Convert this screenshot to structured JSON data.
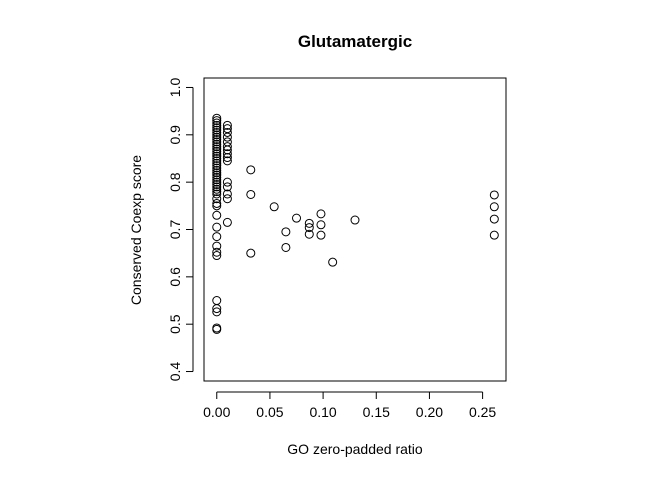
{
  "chart_data": {
    "type": "scatter",
    "title": "Glutamatergic",
    "xlabel": "GO zero-padded ratio",
    "ylabel": "Conserved Coexp score",
    "xlim": [
      -0.012,
      0.272
    ],
    "ylim": [
      0.38,
      1.02
    ],
    "xticks": [
      0.0,
      0.05,
      0.1,
      0.15,
      0.2,
      0.25
    ],
    "xtick_labels": [
      "0.00",
      "0.05",
      "0.10",
      "0.15",
      "0.20",
      "0.25"
    ],
    "yticks": [
      0.4,
      0.5,
      0.6,
      0.7,
      0.8,
      0.9,
      1.0
    ],
    "ytick_labels": [
      "0.4",
      "0.5",
      "0.6",
      "0.7",
      "0.8",
      "0.9",
      "1.0"
    ],
    "grid": false,
    "marker": "open-circle",
    "points": [
      {
        "x": 0.0,
        "y": 0.935
      },
      {
        "x": 0.0,
        "y": 0.93
      },
      {
        "x": 0.0,
        "y": 0.925
      },
      {
        "x": 0.0,
        "y": 0.92
      },
      {
        "x": 0.0,
        "y": 0.915
      },
      {
        "x": 0.0,
        "y": 0.91
      },
      {
        "x": 0.0,
        "y": 0.905
      },
      {
        "x": 0.0,
        "y": 0.9
      },
      {
        "x": 0.0,
        "y": 0.895
      },
      {
        "x": 0.0,
        "y": 0.89
      },
      {
        "x": 0.0,
        "y": 0.885
      },
      {
        "x": 0.0,
        "y": 0.88
      },
      {
        "x": 0.0,
        "y": 0.875
      },
      {
        "x": 0.0,
        "y": 0.87
      },
      {
        "x": 0.0,
        "y": 0.865
      },
      {
        "x": 0.0,
        "y": 0.86
      },
      {
        "x": 0.0,
        "y": 0.855
      },
      {
        "x": 0.0,
        "y": 0.85
      },
      {
        "x": 0.0,
        "y": 0.845
      },
      {
        "x": 0.0,
        "y": 0.84
      },
      {
        "x": 0.0,
        "y": 0.835
      },
      {
        "x": 0.0,
        "y": 0.83
      },
      {
        "x": 0.0,
        "y": 0.825
      },
      {
        "x": 0.0,
        "y": 0.82
      },
      {
        "x": 0.0,
        "y": 0.815
      },
      {
        "x": 0.0,
        "y": 0.81
      },
      {
        "x": 0.0,
        "y": 0.805
      },
      {
        "x": 0.0,
        "y": 0.8
      },
      {
        "x": 0.0,
        "y": 0.795
      },
      {
        "x": 0.0,
        "y": 0.79
      },
      {
        "x": 0.0,
        "y": 0.785
      },
      {
        "x": 0.0,
        "y": 0.78
      },
      {
        "x": 0.0,
        "y": 0.775
      },
      {
        "x": 0.0,
        "y": 0.765
      },
      {
        "x": 0.0,
        "y": 0.755
      },
      {
        "x": 0.0,
        "y": 0.75
      },
      {
        "x": 0.0,
        "y": 0.73
      },
      {
        "x": 0.0,
        "y": 0.705
      },
      {
        "x": 0.0,
        "y": 0.685
      },
      {
        "x": 0.0,
        "y": 0.665
      },
      {
        "x": 0.0,
        "y": 0.652
      },
      {
        "x": 0.0,
        "y": 0.645
      },
      {
        "x": 0.0,
        "y": 0.55
      },
      {
        "x": 0.0,
        "y": 0.533
      },
      {
        "x": 0.0,
        "y": 0.526
      },
      {
        "x": 0.0,
        "y": 0.492
      },
      {
        "x": 0.0,
        "y": 0.489
      },
      {
        "x": 0.01,
        "y": 0.92
      },
      {
        "x": 0.01,
        "y": 0.913
      },
      {
        "x": 0.01,
        "y": 0.905
      },
      {
        "x": 0.01,
        "y": 0.895
      },
      {
        "x": 0.01,
        "y": 0.885
      },
      {
        "x": 0.01,
        "y": 0.875
      },
      {
        "x": 0.01,
        "y": 0.868
      },
      {
        "x": 0.01,
        "y": 0.86
      },
      {
        "x": 0.01,
        "y": 0.852
      },
      {
        "x": 0.01,
        "y": 0.845
      },
      {
        "x": 0.01,
        "y": 0.8
      },
      {
        "x": 0.01,
        "y": 0.79
      },
      {
        "x": 0.01,
        "y": 0.775
      },
      {
        "x": 0.01,
        "y": 0.765
      },
      {
        "x": 0.01,
        "y": 0.715
      },
      {
        "x": 0.032,
        "y": 0.826
      },
      {
        "x": 0.032,
        "y": 0.774
      },
      {
        "x": 0.032,
        "y": 0.65
      },
      {
        "x": 0.054,
        "y": 0.748
      },
      {
        "x": 0.065,
        "y": 0.695
      },
      {
        "x": 0.065,
        "y": 0.662
      },
      {
        "x": 0.075,
        "y": 0.724
      },
      {
        "x": 0.087,
        "y": 0.713
      },
      {
        "x": 0.087,
        "y": 0.704
      },
      {
        "x": 0.087,
        "y": 0.69
      },
      {
        "x": 0.098,
        "y": 0.733
      },
      {
        "x": 0.098,
        "y": 0.71
      },
      {
        "x": 0.098,
        "y": 0.688
      },
      {
        "x": 0.109,
        "y": 0.631
      },
      {
        "x": 0.13,
        "y": 0.72
      },
      {
        "x": 0.261,
        "y": 0.773
      },
      {
        "x": 0.261,
        "y": 0.748
      },
      {
        "x": 0.261,
        "y": 0.722
      },
      {
        "x": 0.261,
        "y": 0.688
      }
    ]
  }
}
